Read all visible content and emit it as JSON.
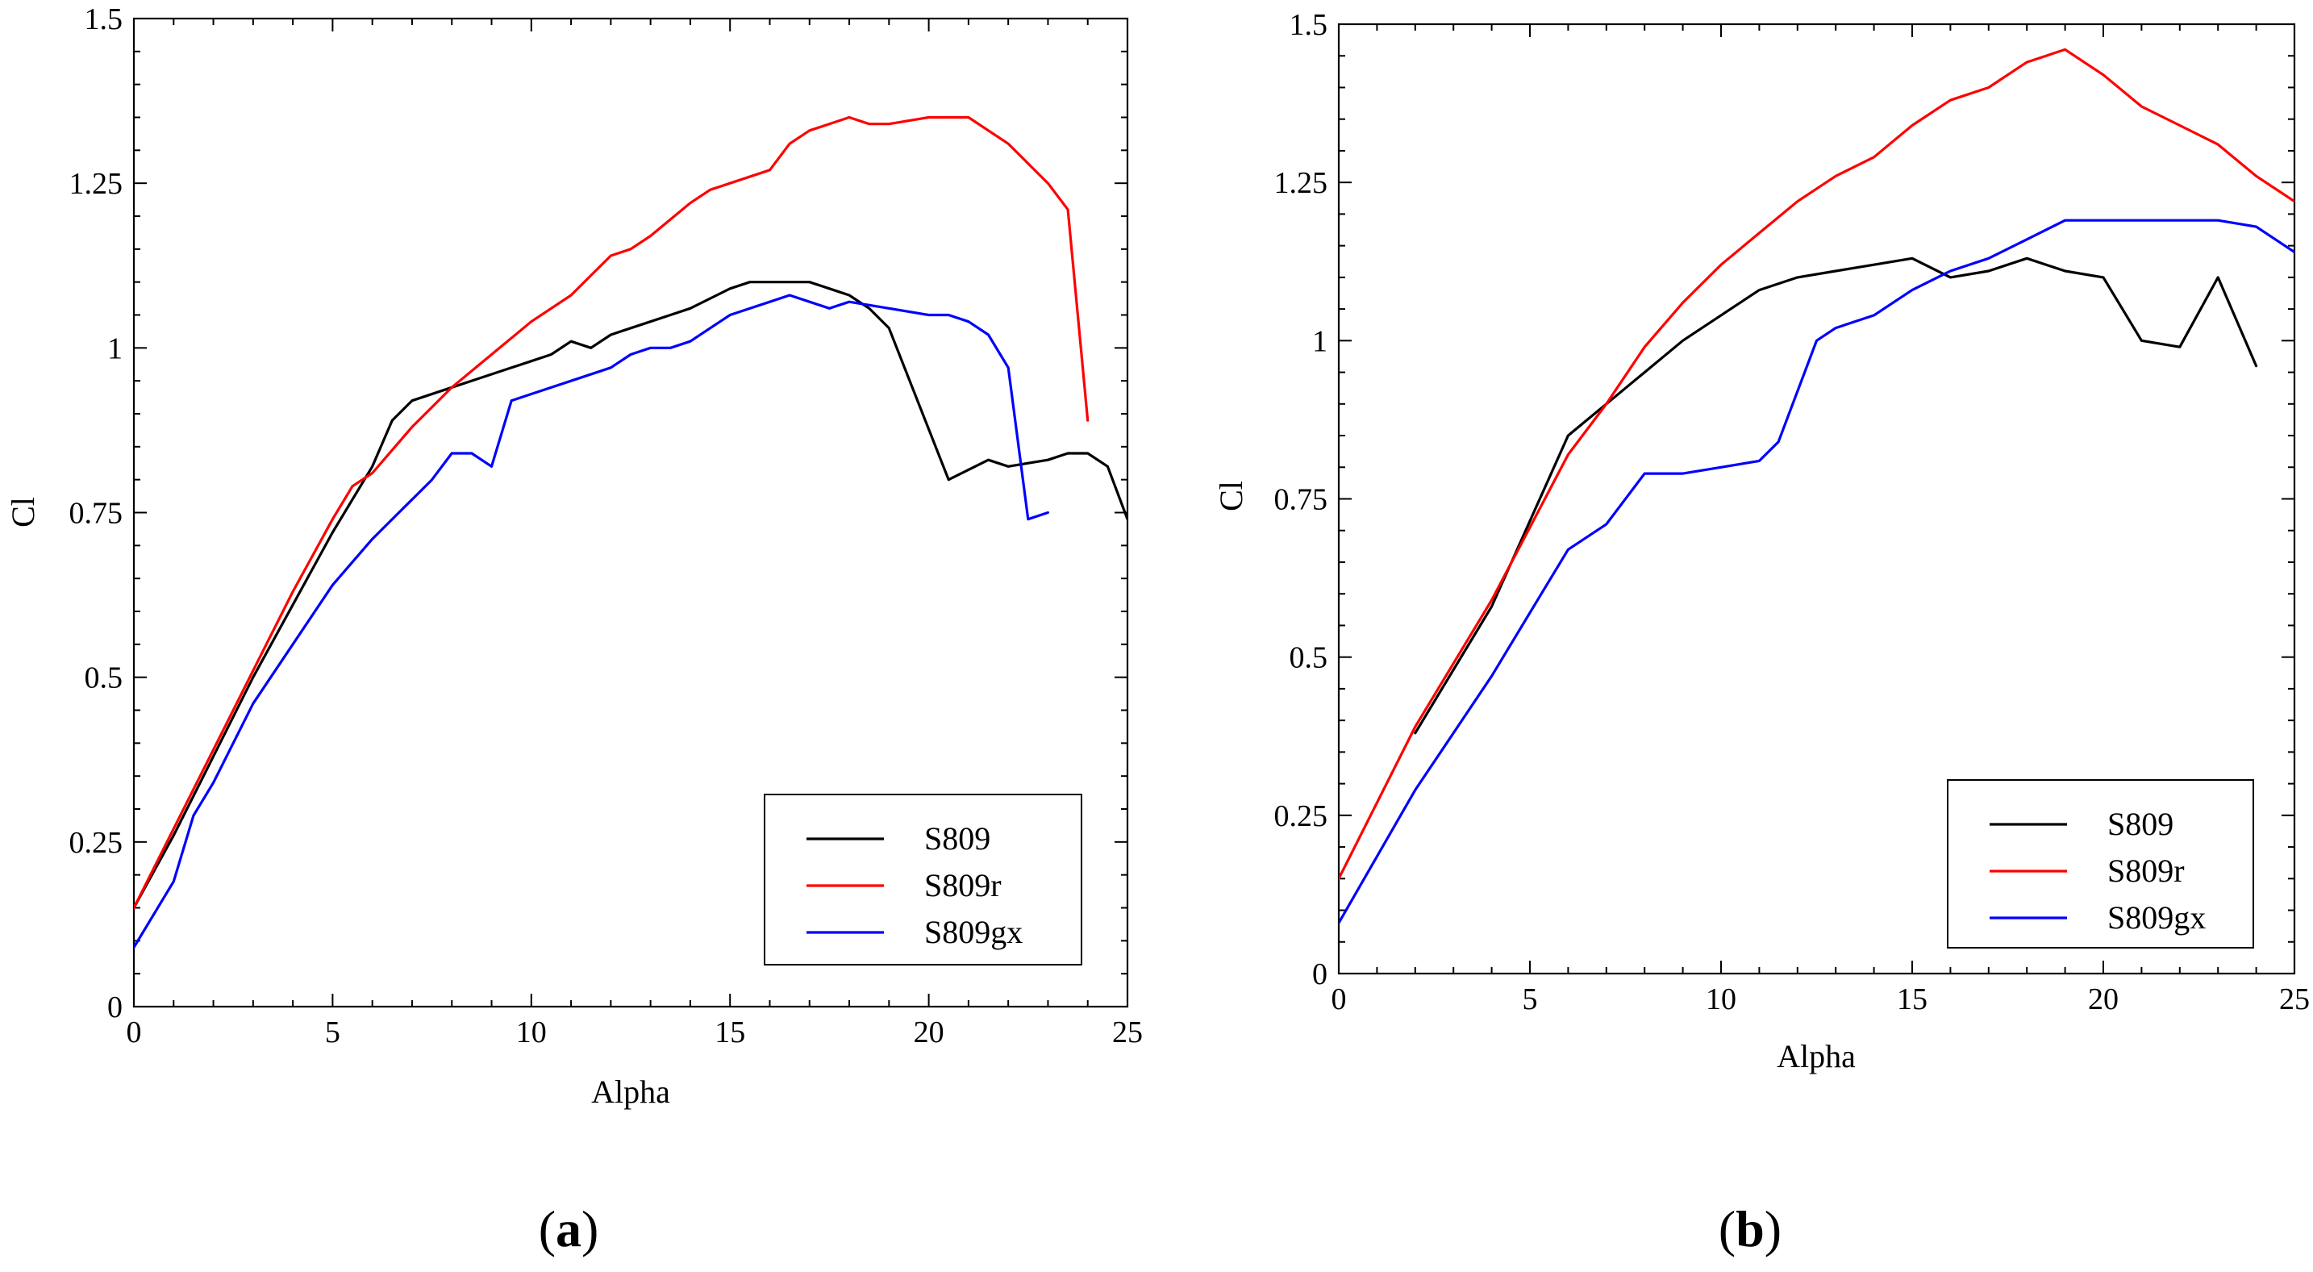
{
  "colors": {
    "S809": "#000000",
    "S809r": "#ff0000",
    "S809gx": "#0000ff"
  },
  "chart_data": [
    {
      "type": "line",
      "panel": "(a)",
      "panel_letter": "a",
      "xlabel": "Alpha",
      "ylabel": "Cl",
      "xlim": [
        0,
        25
      ],
      "ylim": [
        0,
        1.5
      ],
      "xticks": [
        0,
        5,
        10,
        15,
        20,
        25
      ],
      "xtick_labels": [
        "0",
        "5",
        "10",
        "15",
        "20",
        "25"
      ],
      "yticks": [
        0,
        0.25,
        0.5,
        0.75,
        1,
        1.25,
        1.5
      ],
      "ytick_labels": [
        "0",
        "0.25",
        "0.5",
        "0.75",
        "1",
        "1.25",
        "1.5"
      ],
      "legend_position": "bottom-right",
      "series": [
        {
          "name": "S809",
          "x": [
            0,
            1,
            2,
            3,
            4,
            5,
            6,
            6.5,
            7,
            8,
            9,
            10,
            10.5,
            11,
            11.5,
            12,
            12.5,
            13,
            13.5,
            14,
            15,
            15.5,
            16,
            16.5,
            17,
            17.5,
            18,
            18.5,
            19,
            20.5,
            21.5,
            22,
            23,
            23.5,
            24,
            24.5,
            25
          ],
          "y": [
            0.15,
            0.26,
            0.38,
            0.5,
            0.61,
            0.72,
            0.82,
            0.89,
            0.92,
            0.94,
            0.96,
            0.98,
            0.99,
            1.01,
            1.0,
            1.02,
            1.03,
            1.04,
            1.05,
            1.06,
            1.09,
            1.1,
            1.1,
            1.1,
            1.1,
            1.09,
            1.08,
            1.06,
            1.03,
            0.8,
            0.83,
            0.82,
            0.83,
            0.84,
            0.84,
            0.82,
            0.74
          ]
        },
        {
          "name": "S809r",
          "x": [
            0,
            1,
            2,
            3,
            4,
            5,
            5.5,
            6,
            7,
            8,
            9,
            10,
            11,
            11.5,
            12,
            12.5,
            13,
            14,
            14.5,
            15,
            16,
            16.5,
            17,
            18,
            18.5,
            19,
            20,
            21,
            22,
            22.5,
            23,
            23.5,
            24
          ],
          "y": [
            0.15,
            0.27,
            0.39,
            0.51,
            0.63,
            0.74,
            0.79,
            0.81,
            0.88,
            0.94,
            0.99,
            1.04,
            1.08,
            1.11,
            1.14,
            1.15,
            1.17,
            1.22,
            1.24,
            1.25,
            1.27,
            1.31,
            1.33,
            1.35,
            1.34,
            1.34,
            1.35,
            1.35,
            1.31,
            1.28,
            1.25,
            1.21,
            0.89
          ]
        },
        {
          "name": "S809gx",
          "x": [
            0,
            1,
            1.5,
            2,
            3,
            4,
            5,
            6,
            7,
            7.5,
            8,
            8.5,
            9,
            9.5,
            10,
            11,
            12,
            12.5,
            13,
            13.5,
            14,
            15,
            16,
            16.5,
            17,
            17.5,
            18,
            19,
            20,
            20.5,
            21,
            21.5,
            22,
            22.5,
            23
          ],
          "y": [
            0.09,
            0.19,
            0.29,
            0.34,
            0.46,
            0.55,
            0.64,
            0.71,
            0.77,
            0.8,
            0.84,
            0.84,
            0.82,
            0.92,
            0.93,
            0.95,
            0.97,
            0.99,
            1.0,
            1.0,
            1.01,
            1.05,
            1.07,
            1.08,
            1.07,
            1.06,
            1.07,
            1.06,
            1.05,
            1.05,
            1.04,
            1.02,
            0.97,
            0.74,
            0.75
          ]
        }
      ]
    },
    {
      "type": "line",
      "panel": "(b)",
      "panel_letter": "b",
      "xlabel": "Alpha",
      "ylabel": "Cl",
      "xlim": [
        0,
        25
      ],
      "ylim": [
        0,
        1.5
      ],
      "xticks": [
        0,
        5,
        10,
        15,
        20,
        25
      ],
      "xtick_labels": [
        "0",
        "5",
        "10",
        "15",
        "20",
        "25"
      ],
      "yticks": [
        0,
        0.25,
        0.5,
        0.75,
        1,
        1.25,
        1.5
      ],
      "ytick_labels": [
        "0",
        "0.25",
        "0.5",
        "0.75",
        "1",
        "1.25",
        "1.5"
      ],
      "legend_position": "bottom-right",
      "series": [
        {
          "name": "S809",
          "x": [
            2,
            4,
            6,
            7,
            8,
            9,
            10,
            11,
            12,
            13,
            14,
            15,
            16,
            17,
            18,
            19,
            20,
            21,
            22,
            23,
            24
          ],
          "y": [
            0.38,
            0.58,
            0.85,
            0.9,
            0.95,
            1.0,
            1.04,
            1.08,
            1.1,
            1.11,
            1.12,
            1.13,
            1.1,
            1.11,
            1.13,
            1.11,
            1.1,
            1.0,
            0.99,
            1.1,
            0.96
          ]
        },
        {
          "name": "S809r",
          "x": [
            0,
            2,
            4,
            6,
            7,
            8,
            9,
            10,
            11,
            12,
            13,
            14,
            15,
            16,
            17,
            18,
            19,
            20,
            21,
            22,
            23,
            24,
            25
          ],
          "y": [
            0.15,
            0.39,
            0.59,
            0.82,
            0.9,
            0.99,
            1.06,
            1.12,
            1.17,
            1.22,
            1.26,
            1.29,
            1.34,
            1.38,
            1.4,
            1.44,
            1.46,
            1.42,
            1.37,
            1.34,
            1.31,
            1.26,
            1.22
          ]
        },
        {
          "name": "S809gx",
          "x": [
            0,
            2,
            4,
            5,
            6,
            7,
            8,
            9,
            10,
            11,
            11.5,
            12.5,
            13,
            14,
            15,
            16,
            17,
            18,
            19,
            20,
            21,
            22,
            23,
            24,
            25
          ],
          "y": [
            0.08,
            0.29,
            0.47,
            0.57,
            0.67,
            0.71,
            0.79,
            0.79,
            0.8,
            0.81,
            0.84,
            1.0,
            1.02,
            1.04,
            1.08,
            1.11,
            1.13,
            1.16,
            1.19,
            1.19,
            1.19,
            1.19,
            1.19,
            1.18,
            1.14
          ]
        }
      ]
    }
  ]
}
